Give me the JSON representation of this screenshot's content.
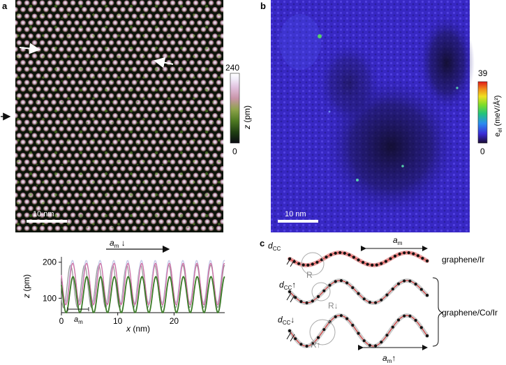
{
  "panels": {
    "a": {
      "label": "a",
      "scalebar": "10 nm",
      "colorbar": {
        "max": "240",
        "min": "0",
        "label": "z (pm)",
        "colors": [
          "#0a0a12",
          "#1e3d12",
          "#4f7a22",
          "#8ea34a",
          "#c994a8",
          "#e2c2df",
          "#f2eefa",
          "#ffffff"
        ]
      }
    },
    "b": {
      "label": "b",
      "scalebar": "10 nm",
      "colorbar": {
        "max": "39",
        "min": "0",
        "label": "e_el (meV/Å²)",
        "label_main": "e",
        "label_sub": "el",
        "label_unit": " (meV/Å²)",
        "colors": [
          "#1a0a33",
          "#3a2bd6",
          "#2a8cf0",
          "#22c47a",
          "#7bdc2a",
          "#f0e020",
          "#f08a18",
          "#e01818"
        ]
      }
    },
    "c": {
      "label": "c",
      "rows": [
        {
          "name": "graphene/Ir",
          "dcc_main": "d",
          "dcc_sub": "CC",
          "dcc_arrow": "",
          "am_main": "a",
          "am_sub": "m",
          "am_arrow": "",
          "r_label": "R",
          "r_arrow": ""
        },
        {
          "name": "",
          "dcc_main": "d",
          "dcc_sub": "CC",
          "dcc_arrow": "↑",
          "am_main": "",
          "am_sub": "",
          "am_arrow": "",
          "r_label": "R",
          "r_arrow": "↓"
        },
        {
          "name": "",
          "dcc_main": "d",
          "dcc_sub": "CC",
          "dcc_arrow": "↓",
          "am_main": "a",
          "am_sub": "m",
          "am_arrow": "↑",
          "r_label": "R",
          "r_arrow": "↑"
        }
      ],
      "brace_label": "graphene/Co/Ir"
    }
  },
  "chart_data": {
    "type": "line",
    "title": "",
    "xlabel": "x (nm)",
    "xlabel_main": "x",
    "xlabel_unit": " (nm)",
    "ylabel": "z (pm)",
    "ylabel_main": "z",
    "ylabel_unit": " (pm)",
    "xlim": [
      0,
      29
    ],
    "ylim": [
      60,
      215
    ],
    "xticks": [
      0,
      10,
      20
    ],
    "yticks": [
      100,
      200
    ],
    "annotations": {
      "top_arrow_main": "a",
      "top_arrow_sub": "m",
      "top_arrow_symbol": " ↓",
      "bottom_marker_main": "a",
      "bottom_marker_sub": "m"
    },
    "series": [
      {
        "name": "gray profile",
        "color": "#9a9a9a",
        "period": 2.49,
        "phase": 0.35,
        "min": 74,
        "max": 192
      },
      {
        "name": "lavender profile",
        "color": "#c4c7e6",
        "period": 2.45,
        "phase": 0.2,
        "min": 88,
        "max": 205
      },
      {
        "name": "pink profile",
        "color": "#cf6fa3",
        "period": 2.45,
        "phase": 0.18,
        "min": 82,
        "max": 197
      },
      {
        "name": "green profile",
        "color": "#3a7a26",
        "period": 2.45,
        "phase": 0.16,
        "min": 60,
        "max": 160
      }
    ]
  }
}
